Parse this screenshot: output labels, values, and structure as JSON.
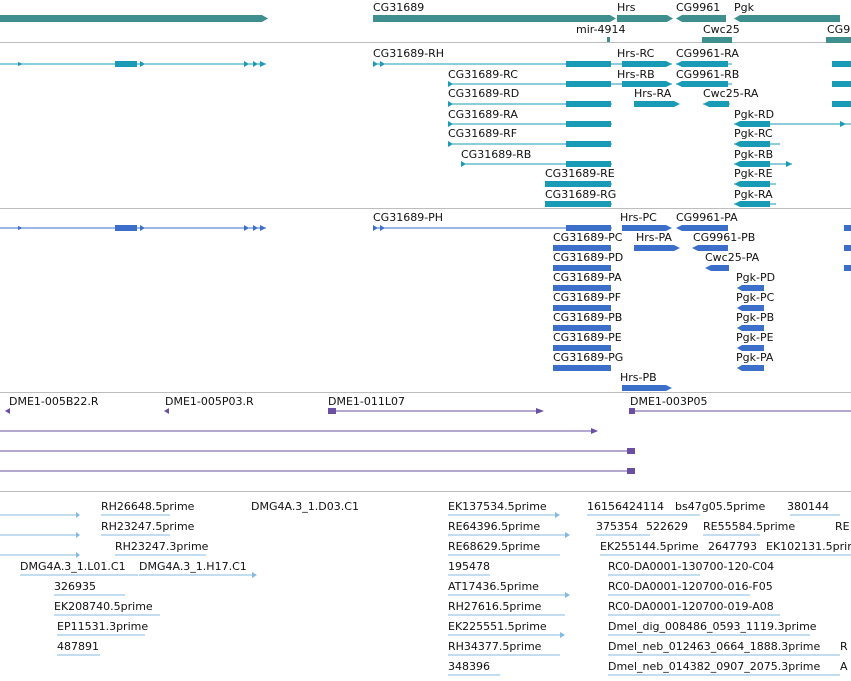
{
  "colors": {
    "gene": "#3f8f8e",
    "transcript": "#1a9bb5",
    "cds": "#3b6fc9",
    "clone": "#6a4fa3",
    "est": "#84b9e2",
    "divider": "#bdbdbd"
  },
  "gene_track": {
    "labels": [
      "CG31689",
      "Hrs",
      "CG9961",
      "Pgk",
      "mir-4914",
      "Cwc25",
      "CG9"
    ]
  },
  "transcript_track": {
    "labels": [
      "CG31689-RH",
      "CG31689-RC",
      "CG31689-RD",
      "CG31689-RA",
      "CG31689-RF",
      "CG31689-RB",
      "CG31689-RE",
      "CG31689-RG",
      "Hrs-RC",
      "Hrs-RB",
      "Hrs-RA",
      "CG9961-RA",
      "CG9961-RB",
      "Cwc25-RA",
      "Pgk-RD",
      "Pgk-RC",
      "Pgk-RB",
      "Pgk-RE",
      "Pgk-RA"
    ]
  },
  "protein_track": {
    "labels": [
      "CG31689-PH",
      "CG31689-PC",
      "CG31689-PD",
      "CG31689-PA",
      "CG31689-PF",
      "CG31689-PB",
      "CG31689-PE",
      "CG31689-PG",
      "Hrs-PC",
      "Hrs-PA",
      "Hrs-PB",
      "CG9961-PA",
      "CG9961-PB",
      "Cwc25-PA",
      "Pgk-PD",
      "Pgk-PC",
      "Pgk-PB",
      "Pgk-PE",
      "Pgk-PA"
    ]
  },
  "clone_track": {
    "labels": [
      "DME1-005B22.R",
      "DME1-005P03.R",
      "DME1-011L07",
      "DME1-003P05"
    ]
  },
  "est_track": {
    "labels": [
      "RH26648.5prime",
      "RH23247.5prime",
      "RH23247.3prime",
      "DMG4A.3_1.D03.C1",
      "DMG4A.3_1.L01.C1",
      "DMG4A.3_1.H17.C1",
      "326935",
      "EK208740.5prime",
      "EP11531.3prime",
      "487891",
      "EK137534.5prime",
      "RE64396.5prime",
      "RE68629.5prime",
      "195478",
      "AT17436.5prime",
      "RH27616.5prime",
      "EK225551.5prime",
      "RH34377.5prime",
      "348396",
      "16156424114",
      "bs47g05.5prime",
      "380144",
      "RE",
      "375354",
      "522629",
      "RE55584.5prime",
      "EK255144.5prime",
      "2647793",
      "EK102131.5prime",
      "RC0-DA0001-130700-120-C04",
      "RC0-DA0001-120700-016-F05",
      "RC0-DA0001-120700-019-A08",
      "Dmel_dig_008486_0593_1119.3prime",
      "Dmel_neb_012463_0664_1888.3prime",
      "Dmel_neb_014382_0907_2075.3prime",
      "R",
      "A"
    ]
  }
}
